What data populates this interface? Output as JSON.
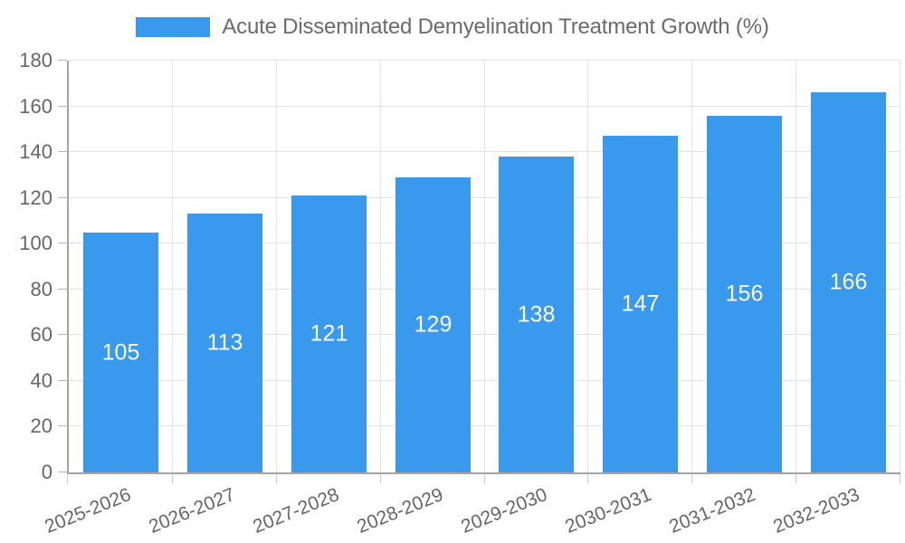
{
  "legend": {
    "label": "Acute Disseminated Demyelination Treatment Growth (%)"
  },
  "chart_data": {
    "type": "bar",
    "title": "Acute Disseminated Demyelination Treatment Growth (%)",
    "categories": [
      "2025-2026",
      "2026-2027",
      "2027-2028",
      "2028-2029",
      "2029-2030",
      "2030-2031",
      "2031-2032",
      "2032-2033"
    ],
    "values": [
      105,
      113,
      121,
      129,
      138,
      147,
      156,
      166
    ],
    "xlabel": "",
    "ylabel": "",
    "ylim": [
      0,
      180
    ],
    "ytick_interval": 20,
    "yticks": [
      0,
      20,
      40,
      60,
      80,
      100,
      120,
      140,
      160,
      180
    ],
    "grid": true,
    "legend_position": "top",
    "bar_color": "#3999ed",
    "value_label_color": "#ffffff",
    "axis_text_color": "#666666"
  }
}
